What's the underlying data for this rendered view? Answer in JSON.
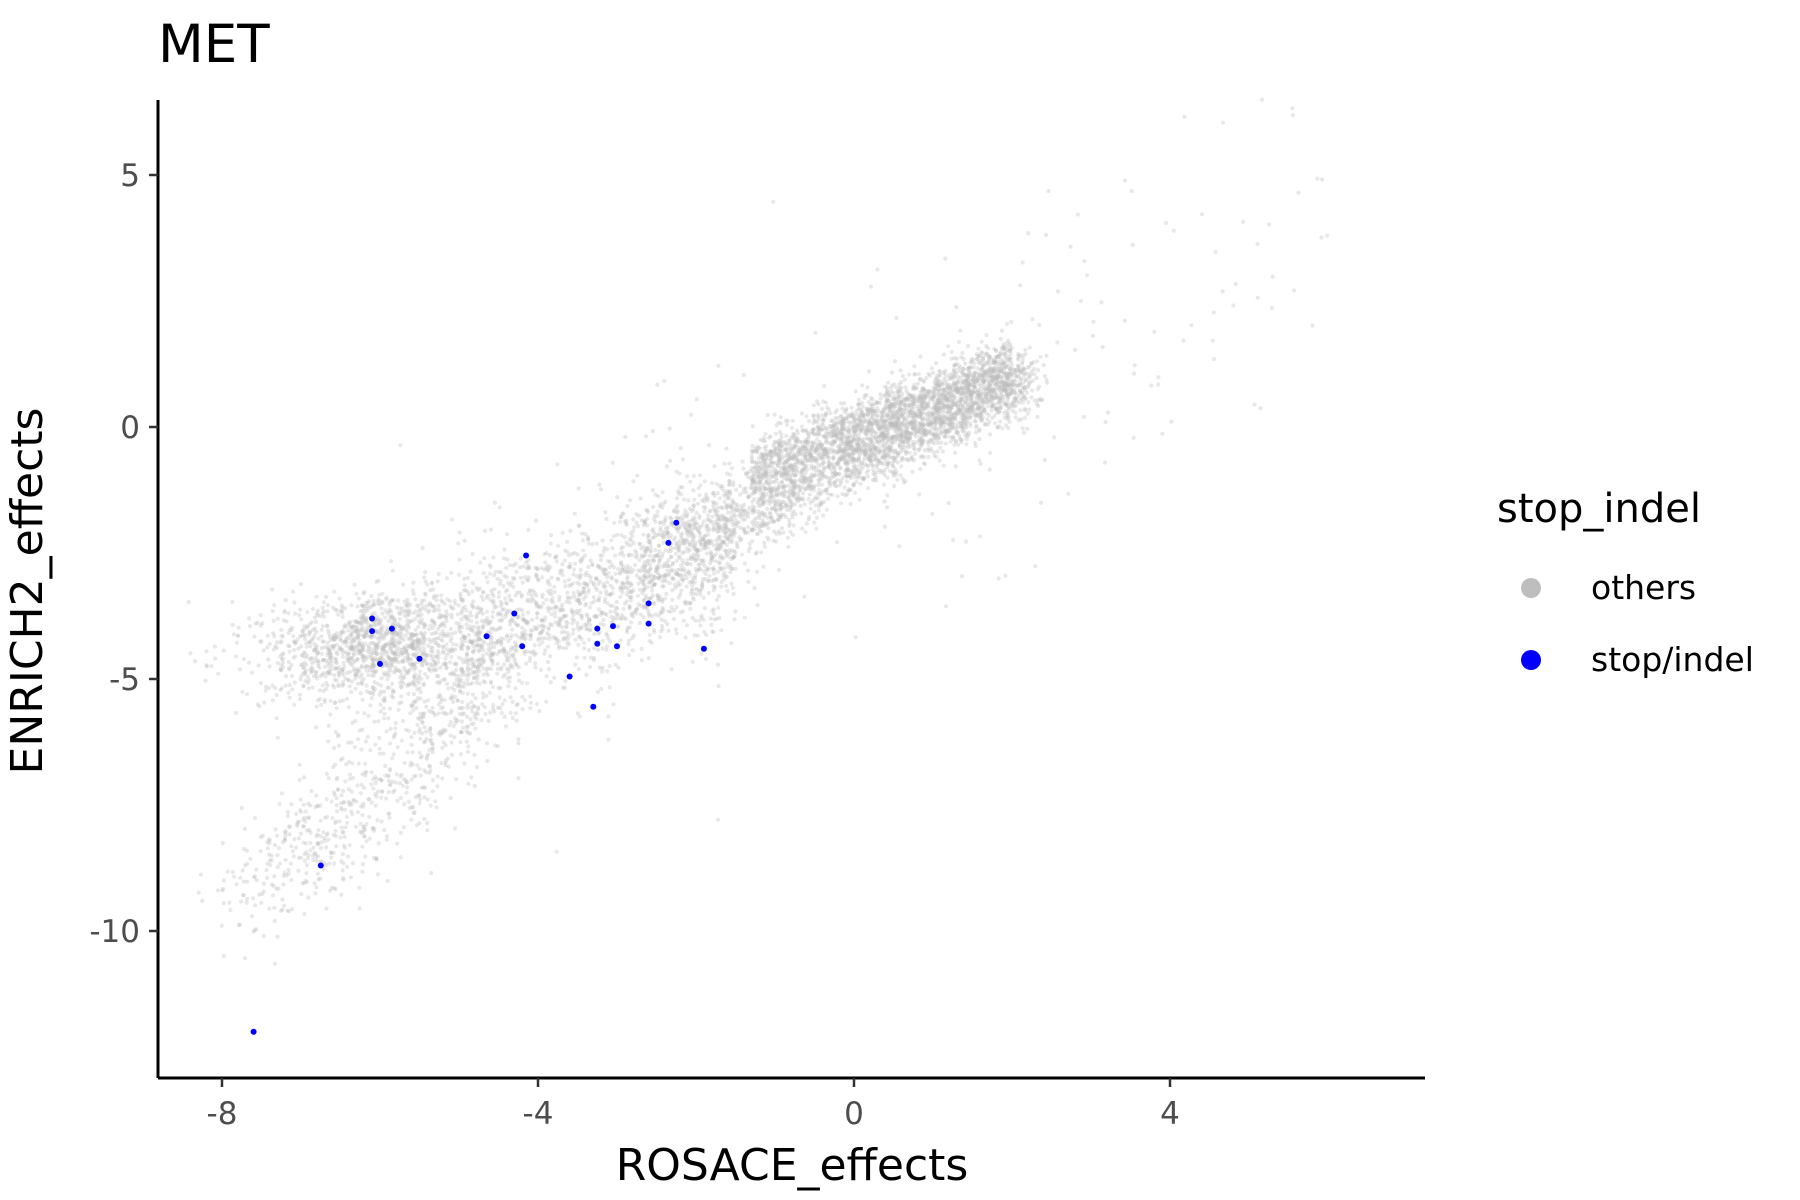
{
  "chart_data": {
    "type": "scatter",
    "title": "MET",
    "xlabel": "ROSACE_effects",
    "ylabel": "ENRICH2_effects",
    "xlim": [
      -8.8,
      7.2
    ],
    "ylim": [
      -13.2,
      6.5
    ],
    "x_ticks": [
      -8,
      -4,
      0,
      4
    ],
    "x_tick_labels": [
      "-8",
      "-4",
      "0",
      "4"
    ],
    "y_ticks": [
      5,
      0,
      -5,
      -10
    ],
    "y_tick_labels": [
      "5",
      "0",
      "-5",
      "-10"
    ],
    "grid": false,
    "legend": {
      "title": "stop_indel",
      "position": "right",
      "entries": [
        {
          "label": "others",
          "color": "#bebebe"
        },
        {
          "label": "stop/indel",
          "color": "#0000ff"
        }
      ]
    },
    "series": [
      {
        "name": "others",
        "color": "#bebebe",
        "opacity": 0.35,
        "note_density": "several thousand points along an increasing curve from about (-7.5,-9) to (2,1.3), dense around (-6,-4.3) and (0,0)",
        "points_sampled": true
      },
      {
        "name": "stop/indel",
        "color": "#0000ff",
        "points": [
          [
            -6.1,
            -3.8
          ],
          [
            -6.1,
            -4.05
          ],
          [
            -5.85,
            -4.0
          ],
          [
            -6.0,
            -4.7
          ],
          [
            -5.5,
            -4.6
          ],
          [
            -4.65,
            -4.15
          ],
          [
            -4.3,
            -3.7
          ],
          [
            -4.2,
            -4.35
          ],
          [
            -4.15,
            -2.55
          ],
          [
            -3.6,
            -4.95
          ],
          [
            -3.3,
            -5.55
          ],
          [
            -3.25,
            -4.0
          ],
          [
            -3.25,
            -4.3
          ],
          [
            -3.05,
            -3.95
          ],
          [
            -3.0,
            -4.35
          ],
          [
            -2.6,
            -3.5
          ],
          [
            -2.6,
            -3.9
          ],
          [
            -2.35,
            -2.3
          ],
          [
            -2.25,
            -1.9
          ],
          [
            -1.9,
            -4.4
          ],
          [
            -6.75,
            -8.7
          ],
          [
            -7.6,
            -12.0
          ]
        ]
      }
    ]
  }
}
